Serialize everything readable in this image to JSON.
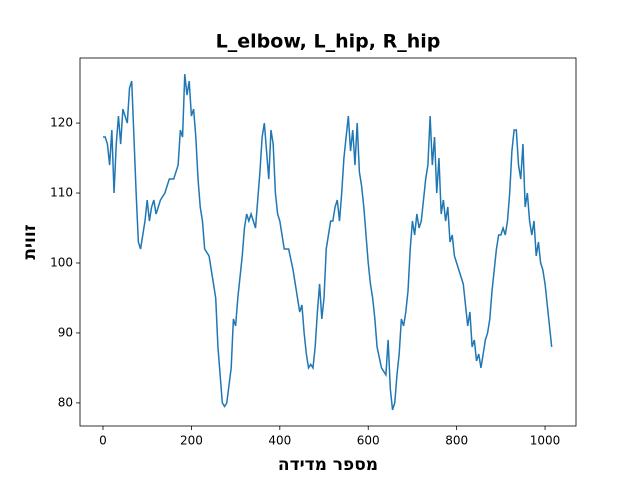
{
  "chart_data": {
    "type": "line",
    "title": "L_elbow, L_hip, R_hip",
    "xlabel": "מספר מדידה",
    "ylabel": "זווית",
    "x": [
      0,
      5,
      10,
      15,
      20,
      25,
      30,
      35,
      40,
      45,
      50,
      55,
      60,
      65,
      70,
      75,
      80,
      85,
      90,
      95,
      100,
      105,
      110,
      115,
      120,
      130,
      140,
      150,
      160,
      170,
      175,
      180,
      185,
      190,
      195,
      200,
      205,
      210,
      215,
      220,
      225,
      230,
      240,
      250,
      255,
      260,
      265,
      270,
      275,
      280,
      290,
      295,
      300,
      305,
      310,
      315,
      320,
      325,
      330,
      335,
      340,
      345,
      350,
      355,
      360,
      365,
      370,
      375,
      380,
      385,
      390,
      395,
      400,
      405,
      410,
      420,
      430,
      440,
      445,
      450,
      455,
      460,
      465,
      470,
      475,
      480,
      485,
      490,
      495,
      500,
      505,
      510,
      515,
      520,
      525,
      530,
      535,
      540,
      545,
      550,
      555,
      560,
      565,
      570,
      575,
      580,
      585,
      590,
      595,
      600,
      605,
      610,
      615,
      620,
      630,
      640,
      645,
      650,
      655,
      660,
      665,
      670,
      675,
      680,
      685,
      690,
      695,
      700,
      705,
      710,
      715,
      720,
      725,
      730,
      735,
      740,
      745,
      750,
      755,
      760,
      765,
      770,
      775,
      780,
      785,
      790,
      795,
      800,
      810,
      815,
      820,
      825,
      830,
      835,
      840,
      845,
      850,
      855,
      860,
      865,
      870,
      875,
      880,
      885,
      890,
      895,
      900,
      905,
      910,
      915,
      920,
      925,
      930,
      935,
      940,
      945,
      950,
      955,
      960,
      965,
      970,
      975,
      980,
      985,
      990,
      995,
      1000,
      1005,
      1010,
      1015
    ],
    "series": [
      {
        "name": "L_elbow, L_hip, R_hip",
        "color": "#1f77b4",
        "values": [
          118,
          118,
          117,
          114,
          119,
          110,
          117,
          121,
          117,
          122,
          121,
          120,
          125,
          126,
          118,
          110,
          103,
          102,
          104,
          106,
          109,
          106,
          108,
          109,
          107,
          109,
          110,
          112,
          112,
          114,
          119,
          118,
          127,
          124,
          126,
          121,
          122,
          118,
          112,
          108,
          106,
          102,
          101,
          97,
          95,
          88,
          84,
          80,
          79.5,
          80,
          85,
          92,
          91,
          95,
          98,
          101,
          105,
          107,
          106,
          107,
          106,
          105,
          109,
          113,
          118,
          120,
          116,
          112,
          119,
          117,
          110,
          107,
          106,
          104,
          102,
          102,
          99,
          95,
          93,
          94,
          90,
          87,
          85,
          85.5,
          85,
          88,
          93,
          97,
          92,
          95,
          102,
          104,
          106,
          106,
          108,
          109,
          106,
          110,
          115,
          118,
          121,
          116,
          119,
          114,
          120,
          113,
          111,
          108,
          104,
          100,
          97,
          95,
          92,
          88,
          85,
          84,
          89,
          82,
          79,
          80,
          84,
          87,
          92,
          91,
          93,
          96,
          102,
          106,
          104,
          107,
          105,
          106,
          109,
          112,
          114,
          121,
          114,
          118,
          110,
          115,
          107,
          109,
          106,
          108,
          103,
          104,
          101,
          100,
          98,
          97,
          94,
          91,
          93,
          88,
          89,
          86,
          87,
          85,
          87,
          89,
          90,
          92,
          96,
          99,
          102,
          104,
          104,
          105,
          104,
          106,
          110,
          116,
          119,
          119,
          114,
          112,
          117,
          108,
          110,
          106,
          104,
          106,
          101,
          103,
          100,
          99,
          97,
          94,
          91,
          88
        ]
      }
    ],
    "xlim": [
      -52,
      1070
    ],
    "ylim": [
      76.7,
      129.3
    ],
    "xticks": [
      0,
      200,
      400,
      600,
      800,
      1000
    ],
    "yticks": [
      80,
      90,
      100,
      110,
      120
    ]
  }
}
